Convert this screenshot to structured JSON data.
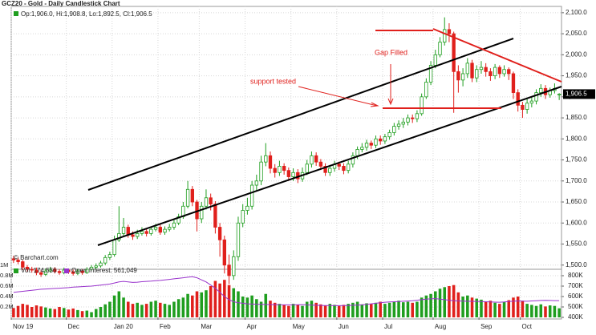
{
  "chart_data": {
    "type": "candlestick",
    "title": "GCZ20 - Gold - Daily Candlestick Chart",
    "ohlc_legend": "Op:1,906.0, Hi:1,908.8, Lo:1,892.5, Cl:1,906.5",
    "last_label": "1,906.5",
    "watermark": "© Barchart.com",
    "annotations": [
      "Gap Filled",
      "support tested"
    ],
    "up_color": "#1f9e1f",
    "down_color": "#e0201c",
    "grid": true,
    "ylim": [
      1490,
      2115
    ],
    "yticks": [
      {
        "value": 1500,
        "label": "1,500.0"
      },
      {
        "value": 1550,
        "label": "1,550.0"
      },
      {
        "value": 1600,
        "label": "1,600.0"
      },
      {
        "value": 1650,
        "label": "1,650.0"
      },
      {
        "value": 1700,
        "label": "1,700.0"
      },
      {
        "value": 1750,
        "label": "1,750.0"
      },
      {
        "value": 1800,
        "label": "1,800.0"
      },
      {
        "value": 1850,
        "label": "1,850.0"
      },
      {
        "value": 1900,
        "label": "1,900.0"
      },
      {
        "value": 1950,
        "label": "1,950.0"
      },
      {
        "value": 2000,
        "label": "2,000.0"
      },
      {
        "value": 2050,
        "label": "2,050.0"
      },
      {
        "value": 2100,
        "label": "2,100.0"
      }
    ],
    "xlim": [
      0,
      120
    ],
    "xticks": [
      {
        "value": 0,
        "label": "Nov 19"
      },
      {
        "value": 12,
        "label": "Dec"
      },
      {
        "value": 22,
        "label": "Jan 20"
      },
      {
        "value": 32,
        "label": "Feb"
      },
      {
        "value": 41,
        "label": "Mar"
      },
      {
        "value": 51,
        "label": "Apr"
      },
      {
        "value": 61,
        "label": "May"
      },
      {
        "value": 71,
        "label": "Jun"
      },
      {
        "value": 81,
        "label": "Jul"
      },
      {
        "value": 92,
        "label": "Aug"
      },
      {
        "value": 102,
        "label": "Sep"
      },
      {
        "value": 111,
        "label": "Oct"
      }
    ],
    "open": [
      1515,
      1512,
      1508,
      1495,
      1490,
      1488,
      1482,
      1478,
      1486,
      1490,
      1485,
      1482,
      1488,
      1484,
      1480,
      1486,
      1482,
      1490,
      1495,
      1498,
      1505,
      1518,
      1525,
      1560,
      1575,
      1590,
      1572,
      1568,
      1575,
      1580,
      1575,
      1585,
      1590,
      1578,
      1585,
      1590,
      1600,
      1615,
      1640,
      1680,
      1650,
      1610,
      1640,
      1660,
      1645,
      1590,
      1560,
      1500,
      1475,
      1520,
      1600,
      1630,
      1640,
      1690,
      1700,
      1745,
      1760,
      1730,
      1720,
      1735,
      1725,
      1710,
      1720,
      1705,
      1720,
      1740,
      1760,
      1745,
      1735,
      1720,
      1730,
      1740,
      1735,
      1725,
      1740,
      1760,
      1775,
      1780,
      1790,
      1785,
      1800,
      1795,
      1805,
      1815,
      1830,
      1835,
      1840,
      1850,
      1848,
      1860,
      1900,
      1935,
      1975,
      2000,
      2030,
      2060,
      2050,
      1960,
      1940,
      1955,
      1980,
      1945,
      1965,
      1970,
      1960,
      1950,
      1970,
      1955,
      1965,
      1955,
      1910,
      1880,
      1870,
      1885,
      1890,
      1910,
      1920,
      1905,
      1915,
      1906
    ],
    "high": [
      1522,
      1518,
      1512,
      1500,
      1496,
      1494,
      1488,
      1492,
      1496,
      1495,
      1490,
      1494,
      1492,
      1489,
      1491,
      1490,
      1495,
      1500,
      1504,
      1510,
      1524,
      1532,
      1570,
      1640,
      1612,
      1596,
      1580,
      1584,
      1590,
      1586,
      1592,
      1598,
      1596,
      1592,
      1598,
      1608,
      1622,
      1650,
      1700,
      1688,
      1655,
      1650,
      1680,
      1670,
      1652,
      1600,
      1570,
      1525,
      1535,
      1615,
      1645,
      1660,
      1700,
      1715,
      1760,
      1790,
      1770,
      1740,
      1748,
      1742,
      1732,
      1730,
      1728,
      1732,
      1750,
      1770,
      1768,
      1752,
      1742,
      1738,
      1748,
      1746,
      1742,
      1748,
      1768,
      1782,
      1790,
      1798,
      1796,
      1808,
      1808,
      1812,
      1822,
      1838,
      1844,
      1850,
      1858,
      1858,
      1868,
      1908,
      1944,
      1985,
      2012,
      2042,
      2089,
      2075,
      2055,
      1975,
      1968,
      1992,
      1988,
      1975,
      1985,
      1980,
      1968,
      1978,
      1975,
      1975,
      1970,
      1960,
      1918,
      1888,
      1895,
      1900,
      1918,
      1930,
      1928,
      1922,
      1932,
      1908.8
    ],
    "low": [
      1505,
      1502,
      1488,
      1484,
      1482,
      1476,
      1472,
      1474,
      1482,
      1480,
      1477,
      1478,
      1479,
      1475,
      1476,
      1477,
      1479,
      1486,
      1490,
      1494,
      1500,
      1512,
      1520,
      1555,
      1570,
      1565,
      1560,
      1562,
      1570,
      1568,
      1570,
      1580,
      1572,
      1572,
      1580,
      1584,
      1595,
      1610,
      1635,
      1640,
      1580,
      1600,
      1632,
      1630,
      1575,
      1520,
      1480,
      1455,
      1465,
      1510,
      1590,
      1620,
      1632,
      1675,
      1690,
      1735,
      1718,
      1708,
      1712,
      1715,
      1700,
      1700,
      1695,
      1698,
      1714,
      1732,
      1736,
      1726,
      1712,
      1712,
      1722,
      1726,
      1716,
      1718,
      1732,
      1752,
      1768,
      1772,
      1776,
      1778,
      1786,
      1788,
      1798,
      1808,
      1822,
      1826,
      1832,
      1838,
      1840,
      1855,
      1895,
      1928,
      1968,
      1994,
      2022,
      2030,
      1862,
      1910,
      1925,
      1945,
      1935,
      1935,
      1955,
      1948,
      1938,
      1942,
      1945,
      1948,
      1940,
      1895,
      1865,
      1850,
      1860,
      1875,
      1882,
      1900,
      1895,
      1898,
      1908,
      1892.5
    ],
    "close": [
      1512,
      1508,
      1495,
      1490,
      1488,
      1482,
      1478,
      1486,
      1490,
      1485,
      1482,
      1488,
      1484,
      1480,
      1486,
      1482,
      1490,
      1495,
      1498,
      1505,
      1518,
      1525,
      1560,
      1575,
      1590,
      1572,
      1568,
      1575,
      1580,
      1575,
      1585,
      1590,
      1578,
      1585,
      1590,
      1600,
      1615,
      1640,
      1680,
      1650,
      1610,
      1640,
      1660,
      1645,
      1590,
      1560,
      1500,
      1475,
      1520,
      1600,
      1630,
      1640,
      1690,
      1700,
      1745,
      1760,
      1730,
      1720,
      1735,
      1725,
      1710,
      1720,
      1705,
      1720,
      1740,
      1760,
      1745,
      1735,
      1720,
      1730,
      1740,
      1735,
      1725,
      1740,
      1760,
      1775,
      1780,
      1790,
      1785,
      1800,
      1795,
      1805,
      1815,
      1830,
      1835,
      1840,
      1850,
      1848,
      1860,
      1900,
      1935,
      1975,
      2000,
      2030,
      2060,
      2050,
      1960,
      1940,
      1955,
      1980,
      1945,
      1965,
      1970,
      1960,
      1950,
      1970,
      1955,
      1965,
      1955,
      1910,
      1880,
      1870,
      1885,
      1890,
      1910,
      1920,
      1905,
      1915,
      1920,
      1906.5
    ],
    "volume": {
      "legend": "Vol: 174,556",
      "ylim": [
        0,
        1000000
      ],
      "yticks": [
        {
          "value": 200000,
          "label": "0.2M"
        },
        {
          "value": 400000,
          "label": "0.4M"
        },
        {
          "value": 600000,
          "label": "0.6M"
        },
        {
          "value": 800000,
          "label": "0.8M"
        },
        {
          "value": 1000000,
          "label": "1M"
        }
      ],
      "values": [
        180000,
        220000,
        260000,
        240000,
        200000,
        230000,
        210000,
        190000,
        170000,
        160000,
        200000,
        180000,
        150000,
        170000,
        140000,
        120000,
        130000,
        100000,
        160000,
        200000,
        250000,
        300000,
        420000,
        500000,
        380000,
        300000,
        260000,
        280000,
        240000,
        260000,
        300000,
        320000,
        280000,
        260000,
        240000,
        300000,
        350000,
        380000,
        450000,
        420000,
        500000,
        480000,
        520000,
        600000,
        700000,
        650000,
        720000,
        620000,
        560000,
        500000,
        400000,
        380000,
        420000,
        350000,
        300000,
        450000,
        320000,
        280000,
        260000,
        240000,
        220000,
        260000,
        240000,
        220000,
        300000,
        320000,
        280000,
        250000,
        230000,
        260000,
        240000,
        220000,
        240000,
        260000,
        280000,
        300000,
        250000,
        270000,
        260000,
        280000,
        300000,
        260000,
        280000,
        300000,
        320000,
        290000,
        300000,
        280000,
        300000,
        380000,
        420000,
        450000,
        500000,
        550000,
        580000,
        600000,
        620000,
        480000,
        400000,
        420000,
        380000,
        360000,
        340000,
        300000,
        320000,
        280000,
        260000,
        300000,
        330000,
        380000,
        400000,
        320000,
        260000,
        240000,
        220000,
        250000,
        210000,
        230000,
        220000,
        174556
      ]
    },
    "open_interest": {
      "legend": "Open Interest: 561,049",
      "color": "#9933cc",
      "axis": "y2",
      "y2lim": [
        400000,
        900000
      ],
      "y2ticks": [
        {
          "value": 400000,
          "label": "400K"
        },
        {
          "value": 500000,
          "label": "500K"
        },
        {
          "value": 600000,
          "label": "600K"
        },
        {
          "value": 700000,
          "label": "700K"
        },
        {
          "value": 800000,
          "label": "800K"
        }
      ],
      "values": [
        640000,
        645000,
        650000,
        655000,
        660000,
        665000,
        670000,
        672000,
        675000,
        678000,
        680000,
        682000,
        685000,
        690000,
        692000,
        695000,
        698000,
        700000,
        705000,
        710000,
        715000,
        720000,
        730000,
        740000,
        745000,
        740000,
        735000,
        738000,
        742000,
        745000,
        748000,
        752000,
        755000,
        760000,
        765000,
        770000,
        775000,
        780000,
        785000,
        790000,
        780000,
        760000,
        740000,
        710000,
        680000,
        640000,
        600000,
        570000,
        550000,
        540000,
        535000,
        530000,
        528000,
        526000,
        525000,
        524000,
        523000,
        522000,
        521000,
        520000,
        520000,
        520000,
        521000,
        522000,
        520000,
        518000,
        516000,
        515000,
        514000,
        513000,
        512000,
        512000,
        513000,
        514000,
        516000,
        518000,
        520000,
        525000,
        530000,
        535000,
        540000,
        545000,
        548000,
        550000,
        552000,
        555000,
        557000,
        560000,
        565000,
        570000,
        575000,
        578000,
        580000,
        575000,
        570000,
        565000,
        560000,
        558000,
        556000,
        555000,
        554000,
        553000,
        552000,
        550000,
        548000,
        546000,
        545000,
        548000,
        552000,
        555000,
        558000,
        556000,
        555000,
        558000,
        560000,
        562000,
        563000,
        562000,
        561000,
        561049
      ]
    }
  }
}
